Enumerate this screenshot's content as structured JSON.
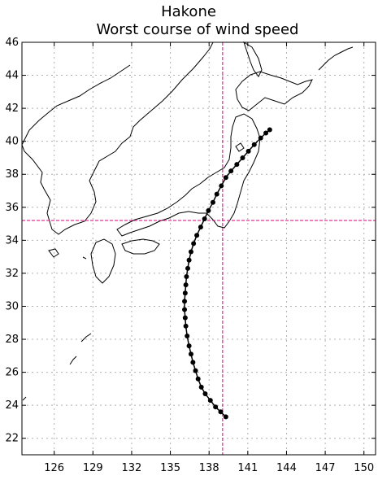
{
  "chart_data": {
    "type": "line",
    "title": "Hakone",
    "subtitle": "Worst course of wind speed",
    "xlim": [
      123.5,
      150.9
    ],
    "ylim": [
      21,
      46
    ],
    "x_ticks": [
      126,
      129,
      132,
      135,
      138,
      141,
      144,
      147,
      150
    ],
    "y_ticks": [
      22,
      24,
      26,
      28,
      30,
      32,
      34,
      36,
      38,
      40,
      42,
      44,
      46
    ],
    "x_tick_labels": [
      "126",
      "129",
      "132",
      "135",
      "138",
      "141",
      "144",
      "147",
      "150"
    ],
    "y_tick_labels": [
      "22",
      "24",
      "26",
      "28",
      "30",
      "32",
      "34",
      "36",
      "38",
      "40",
      "42",
      "44",
      "46"
    ],
    "grid": true,
    "reference_point": {
      "lon": 139.05,
      "lat": 35.2
    },
    "colors": {
      "track": "#000000",
      "crosshair": "#e0007a",
      "grid": "#b0b0b0",
      "coast": "#000000"
    },
    "series": [
      {
        "values": [
          [
            139.3,
            23.3
          ],
          [
            138.9,
            23.6
          ],
          [
            138.5,
            23.9
          ],
          [
            138.1,
            24.3
          ],
          [
            137.7,
            24.7
          ],
          [
            137.4,
            25.1
          ],
          [
            137.15,
            25.6
          ],
          [
            136.95,
            26.1
          ],
          [
            136.75,
            26.6
          ],
          [
            136.6,
            27.1
          ],
          [
            136.45,
            27.6
          ],
          [
            136.3,
            28.2
          ],
          [
            136.2,
            28.8
          ],
          [
            136.15,
            29.3
          ],
          [
            136.1,
            29.8
          ],
          [
            136.1,
            30.3
          ],
          [
            136.15,
            30.8
          ],
          [
            136.2,
            31.3
          ],
          [
            136.25,
            31.8
          ],
          [
            136.35,
            32.3
          ],
          [
            136.45,
            32.8
          ],
          [
            136.6,
            33.3
          ],
          [
            136.8,
            33.8
          ],
          [
            137.05,
            34.3
          ],
          [
            137.35,
            34.8
          ],
          [
            137.65,
            35.3
          ],
          [
            137.95,
            35.8
          ],
          [
            138.3,
            36.3
          ],
          [
            138.6,
            36.8
          ],
          [
            138.95,
            37.3
          ],
          [
            139.3,
            37.8
          ],
          [
            139.7,
            38.2
          ],
          [
            140.15,
            38.6
          ],
          [
            140.6,
            39.0
          ],
          [
            141.05,
            39.4
          ],
          [
            141.5,
            39.8
          ],
          [
            142.0,
            40.2
          ],
          [
            142.4,
            40.5
          ],
          [
            142.7,
            40.7
          ]
        ]
      }
    ]
  }
}
